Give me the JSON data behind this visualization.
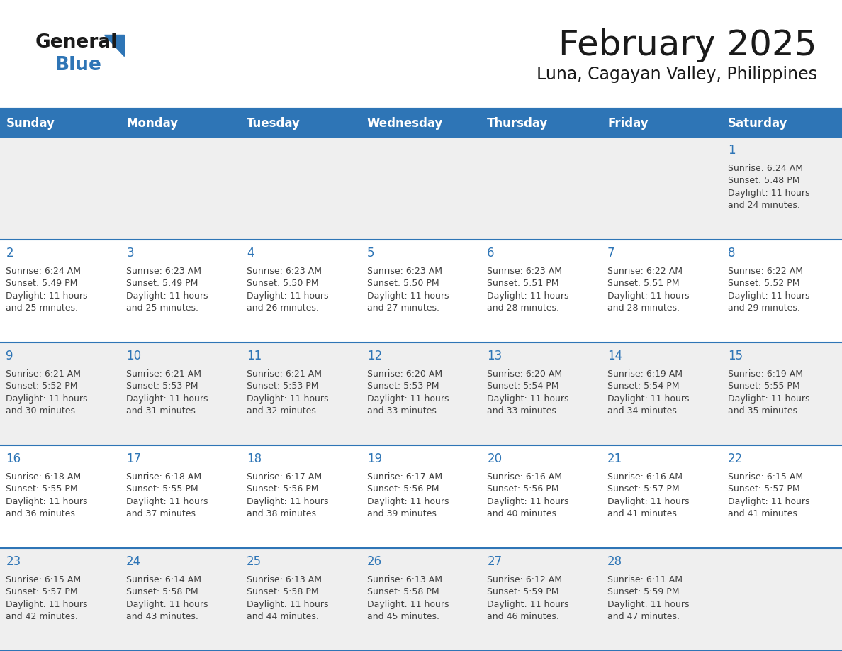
{
  "title": "February 2025",
  "subtitle": "Luna, Cagayan Valley, Philippines",
  "header_bg_color": "#2E75B6",
  "header_text_color": "#FFFFFF",
  "day_names": [
    "Sunday",
    "Monday",
    "Tuesday",
    "Wednesday",
    "Thursday",
    "Friday",
    "Saturday"
  ],
  "row1_color": "#EFEFEF",
  "row2_color": "#FFFFFF",
  "cell_border_color": "#2E75B6",
  "day_number_color": "#2E75B6",
  "info_text_color": "#404040",
  "logo_general_color": "#1A1A1A",
  "logo_blue_color": "#2E75B6",
  "title_color": "#1A1A1A",
  "subtitle_color": "#1A1A1A",
  "calendar_data": [
    [
      null,
      null,
      null,
      null,
      null,
      null,
      1
    ],
    [
      2,
      3,
      4,
      5,
      6,
      7,
      8
    ],
    [
      9,
      10,
      11,
      12,
      13,
      14,
      15
    ],
    [
      16,
      17,
      18,
      19,
      20,
      21,
      22
    ],
    [
      23,
      24,
      25,
      26,
      27,
      28,
      null
    ]
  ],
  "sunrise_data": {
    "1": "6:24 AM",
    "2": "6:24 AM",
    "3": "6:23 AM",
    "4": "6:23 AM",
    "5": "6:23 AM",
    "6": "6:23 AM",
    "7": "6:22 AM",
    "8": "6:22 AM",
    "9": "6:21 AM",
    "10": "6:21 AM",
    "11": "6:21 AM",
    "12": "6:20 AM",
    "13": "6:20 AM",
    "14": "6:19 AM",
    "15": "6:19 AM",
    "16": "6:18 AM",
    "17": "6:18 AM",
    "18": "6:17 AM",
    "19": "6:17 AM",
    "20": "6:16 AM",
    "21": "6:16 AM",
    "22": "6:15 AM",
    "23": "6:15 AM",
    "24": "6:14 AM",
    "25": "6:13 AM",
    "26": "6:13 AM",
    "27": "6:12 AM",
    "28": "6:11 AM"
  },
  "sunset_data": {
    "1": "5:48 PM",
    "2": "5:49 PM",
    "3": "5:49 PM",
    "4": "5:50 PM",
    "5": "5:50 PM",
    "6": "5:51 PM",
    "7": "5:51 PM",
    "8": "5:52 PM",
    "9": "5:52 PM",
    "10": "5:53 PM",
    "11": "5:53 PM",
    "12": "5:53 PM",
    "13": "5:54 PM",
    "14": "5:54 PM",
    "15": "5:55 PM",
    "16": "5:55 PM",
    "17": "5:55 PM",
    "18": "5:56 PM",
    "19": "5:56 PM",
    "20": "5:56 PM",
    "21": "5:57 PM",
    "22": "5:57 PM",
    "23": "5:57 PM",
    "24": "5:58 PM",
    "25": "5:58 PM",
    "26": "5:58 PM",
    "27": "5:59 PM",
    "28": "5:59 PM"
  },
  "daylight_data": {
    "1": "11 hours and 24 minutes.",
    "2": "11 hours and 25 minutes.",
    "3": "11 hours and 25 minutes.",
    "4": "11 hours and 26 minutes.",
    "5": "11 hours and 27 minutes.",
    "6": "11 hours and 28 minutes.",
    "7": "11 hours and 28 minutes.",
    "8": "11 hours and 29 minutes.",
    "9": "11 hours and 30 minutes.",
    "10": "11 hours and 31 minutes.",
    "11": "11 hours and 32 minutes.",
    "12": "11 hours and 33 minutes.",
    "13": "11 hours and 33 minutes.",
    "14": "11 hours and 34 minutes.",
    "15": "11 hours and 35 minutes.",
    "16": "11 hours and 36 minutes.",
    "17": "11 hours and 37 minutes.",
    "18": "11 hours and 38 minutes.",
    "19": "11 hours and 39 minutes.",
    "20": "11 hours and 40 minutes.",
    "21": "11 hours and 41 minutes.",
    "22": "11 hours and 41 minutes.",
    "23": "11 hours and 42 minutes.",
    "24": "11 hours and 43 minutes.",
    "25": "11 hours and 44 minutes.",
    "26": "11 hours and 45 minutes.",
    "27": "11 hours and 46 minutes.",
    "28": "11 hours and 47 minutes."
  }
}
